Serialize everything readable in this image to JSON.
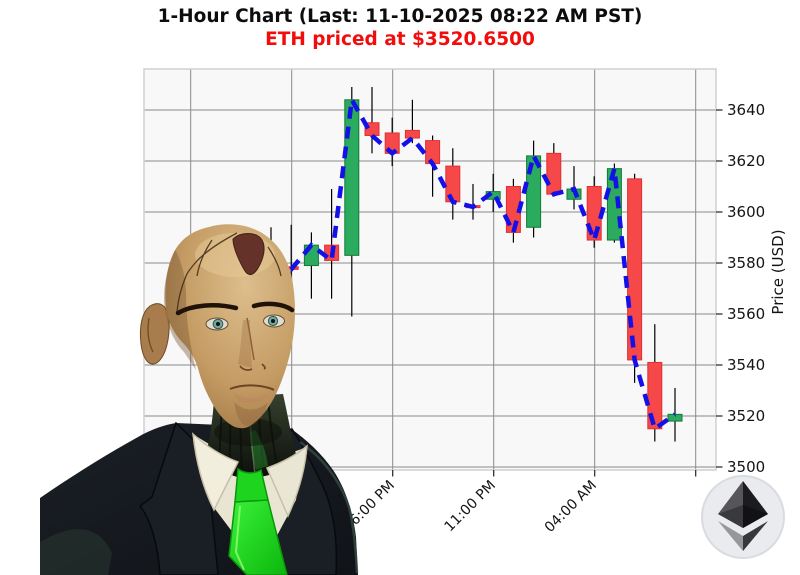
{
  "header": {
    "title": "1-Hour Chart (Last: 11-10-2025 08:22 AM PST)",
    "subtitle": "ETH priced at $3520.6500",
    "title_color": "#0d0d0d",
    "subtitle_color": "#f20d0d"
  },
  "chart_data": {
    "type": "candlestick",
    "symbol": "ETH",
    "interval": "1-hour",
    "last_price": 3520.65,
    "last_time": "11-10-2025 08:22 AM PST",
    "ylabel": "Price (USD)",
    "y_ticks": [
      3500,
      3520,
      3540,
      3560,
      3580,
      3600,
      3620,
      3640
    ],
    "ylim": [
      3494,
      3656
    ],
    "grid": true,
    "legend_position": "none",
    "x_ticks": [
      {
        "candle_index": 6,
        "label": "06:00 PM"
      },
      {
        "candle_index": 11,
        "label": "11:00 PM"
      },
      {
        "candle_index": 16,
        "label": "04:00 AM"
      }
    ],
    "x_gridline_indices": [
      -4,
      1,
      6,
      11,
      16,
      21
    ],
    "candles_format": [
      "open",
      "high",
      "low",
      "close"
    ],
    "candles": [
      [
        3576,
        3594,
        3566,
        3578
      ],
      [
        3578.5,
        3595,
        3566,
        3577.5
      ],
      [
        3579,
        3592,
        3566,
        3587
      ],
      [
        3587,
        3609,
        3566,
        3581
      ],
      [
        3583,
        3649,
        3559,
        3644
      ],
      [
        3635,
        3649,
        3623,
        3630
      ],
      [
        3631,
        3637,
        3618,
        3623
      ],
      [
        3632,
        3644,
        3627,
        3629
      ],
      [
        3628,
        3630,
        3606,
        3619
      ],
      [
        3618,
        3625,
        3597,
        3604
      ],
      [
        3602.5,
        3611,
        3597,
        3602
      ],
      [
        3605,
        3615,
        3600,
        3608
      ],
      [
        3610,
        3613,
        3588,
        3592
      ],
      [
        3594,
        3628,
        3590,
        3622
      ],
      [
        3623,
        3627,
        3606,
        3607
      ],
      [
        3605,
        3618,
        3601,
        3609
      ],
      [
        3610,
        3614,
        3586,
        3589
      ],
      [
        3589,
        3619,
        3588,
        3617
      ],
      [
        3613,
        3615,
        3533,
        3542
      ],
      [
        3541,
        3556,
        3510,
        3515
      ],
      [
        3518,
        3531,
        3510,
        3520.65
      ]
    ],
    "close_line": {
      "style": "dashed",
      "color": "#1410e8",
      "width": 4.5
    },
    "colors": {
      "up_fill": "#2bab5e",
      "up_edge": "#117a3a",
      "down_fill": "#f64848",
      "down_edge": "#e03131",
      "wick": "#000000",
      "grid": "#8a8a8a",
      "plot_bg": "#f8f8f8",
      "spine": "#d0d0d0",
      "tick_label": "#141414"
    }
  },
  "icons": {
    "ethereum_logo": "ethereum-logo-icon",
    "avatar": "android-avatar"
  }
}
